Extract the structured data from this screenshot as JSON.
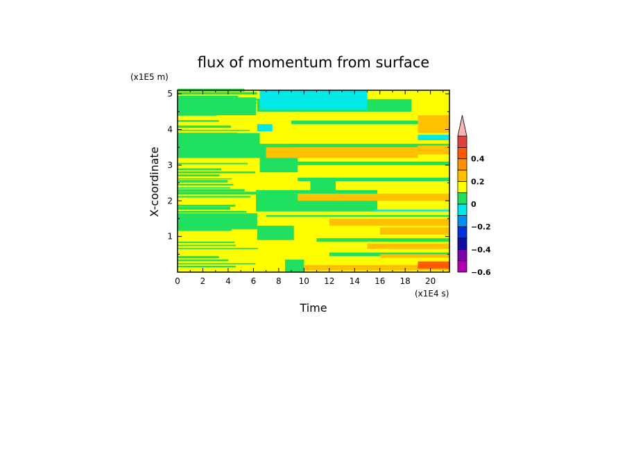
{
  "chart_data": {
    "type": "heatmap",
    "title": "flux of momentum from surface",
    "xlabel": "Time",
    "ylabel": "X-coordinate",
    "x_unit": "(x1E4 s)",
    "y_unit": "(x1E5 m)",
    "xlim": [
      0,
      21.5
    ],
    "ylim": [
      0,
      5.1
    ],
    "x_ticks": [
      "0",
      "2",
      "4",
      "6",
      "8",
      "10",
      "12",
      "14",
      "16",
      "18",
      "20"
    ],
    "y_ticks": [
      "1",
      "2",
      "3",
      "4",
      "5"
    ],
    "colorbar": {
      "levels": [
        {
          "from": -0.6,
          "to": -0.5,
          "color": "#b000b0"
        },
        {
          "from": -0.5,
          "to": -0.4,
          "color": "#8000a8"
        },
        {
          "from": -0.4,
          "to": -0.3,
          "color": "#1010a0"
        },
        {
          "from": -0.3,
          "to": -0.2,
          "color": "#0030e0"
        },
        {
          "from": -0.2,
          "to": -0.1,
          "color": "#0090f0"
        },
        {
          "from": -0.1,
          "to": 0.0,
          "color": "#00e8e8"
        },
        {
          "from": 0.0,
          "to": 0.1,
          "color": "#20e060"
        },
        {
          "from": 0.1,
          "to": 0.2,
          "color": "#ffff00"
        },
        {
          "from": 0.2,
          "to": 0.3,
          "color": "#ffc000"
        },
        {
          "from": 0.3,
          "to": 0.4,
          "color": "#ff9000"
        },
        {
          "from": 0.4,
          "to": 0.5,
          "color": "#ff5a00"
        },
        {
          "from": 0.5,
          "to": 0.6,
          "color": "#e04040"
        }
      ],
      "overflow_color": "#f8b4b0",
      "tick_labels": [
        {
          "value": -0.6,
          "text": "−0.6"
        },
        {
          "value": -0.4,
          "text": "−0.4"
        },
        {
          "value": -0.2,
          "text": "−0.2"
        },
        {
          "value": 0.0,
          "text": "0"
        },
        {
          "value": 0.2,
          "text": "0.2"
        },
        {
          "value": 0.4,
          "text": "0.4"
        }
      ]
    },
    "regions": [
      {
        "x": [
          6.5,
          15
        ],
        "y": [
          4.55,
          5.1
        ],
        "level": "cyan",
        "value": -0.05
      },
      {
        "x": [
          9,
          12
        ],
        "y": [
          4.9,
          5.1
        ],
        "level": "cyan",
        "value": -0.05
      },
      {
        "x": [
          6.3,
          7.5
        ],
        "y": [
          3.95,
          4.15
        ],
        "level": "cyan",
        "value": -0.05
      },
      {
        "x": [
          19,
          21.5
        ],
        "y": [
          3.7,
          3.85
        ],
        "level": "cyan",
        "value": -0.05
      },
      {
        "x": [
          15.5,
          21.5
        ],
        "y": [
          1.7,
          1.75
        ],
        "level": "cyan",
        "value": -0.05
      },
      {
        "x": [
          16,
          21.5
        ],
        "y": [
          0.4,
          0.5
        ],
        "level": "orange",
        "value": 0.25
      },
      {
        "x": [
          19,
          21.5
        ],
        "y": [
          0.1,
          0.3
        ],
        "level": "red",
        "value": 0.45
      }
    ]
  }
}
